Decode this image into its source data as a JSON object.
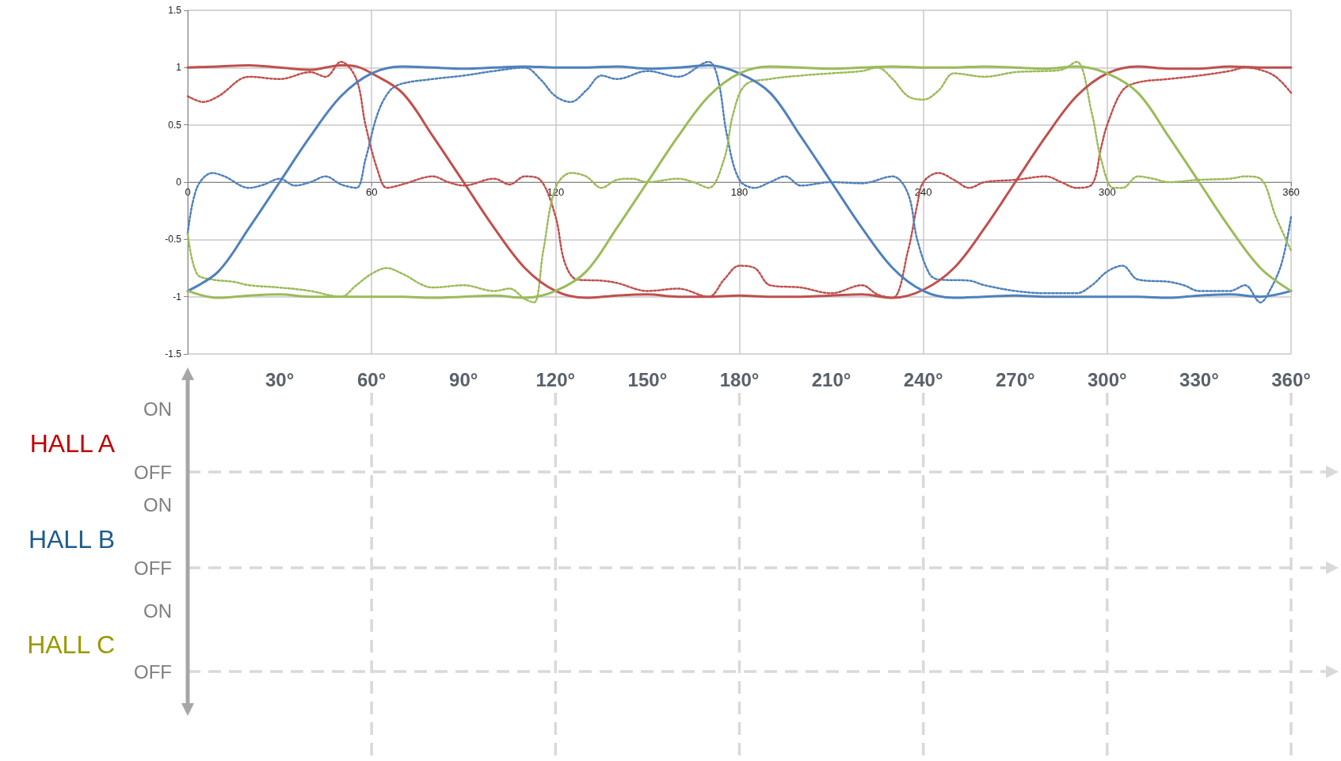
{
  "chart_data": [
    {
      "type": "line",
      "xlim": [
        0,
        360
      ],
      "xticks": [
        0,
        60,
        120,
        180,
        240,
        300,
        360
      ],
      "x2lim": [
        0,
        360
      ],
      "x2ticks": [
        {
          "value": 30,
          "label": "30°"
        },
        {
          "value": 60,
          "label": "60°"
        },
        {
          "value": 90,
          "label": "90°"
        },
        {
          "value": 120,
          "label": "120°"
        },
        {
          "value": 150,
          "label": "150°"
        },
        {
          "value": 180,
          "label": "180°"
        },
        {
          "value": 210,
          "label": "210°"
        },
        {
          "value": 240,
          "label": "240°"
        },
        {
          "value": 270,
          "label": "270°"
        },
        {
          "value": 300,
          "label": "300°"
        },
        {
          "value": 330,
          "label": "330°"
        },
        {
          "value": 360,
          "label": "360°"
        }
      ],
      "ylim": [
        -1.5,
        1.5
      ],
      "yticks": [
        -1.5,
        -1,
        -0.5,
        0,
        0.5,
        1,
        1.5
      ],
      "grid": true,
      "marker": "none",
      "series": [
        {
          "color": "#c0504d",
          "line_style": "solid",
          "x": [
            0,
            10,
            20,
            30,
            40,
            50,
            55,
            60,
            70,
            80,
            90,
            100,
            110,
            120,
            130,
            140,
            150,
            160,
            170,
            180,
            190,
            200,
            210,
            220,
            230,
            240,
            250,
            260,
            270,
            280,
            290,
            300,
            310,
            320,
            330,
            340,
            350,
            360
          ],
          "values": [
            1,
            1.01,
            1.02,
            1,
            0.98,
            1.02,
            1.01,
            0.95,
            0.78,
            0.4,
            0,
            -0.4,
            -0.75,
            -0.95,
            -1.01,
            -0.99,
            -0.98,
            -1,
            -1,
            -0.99,
            -1,
            -1,
            -0.99,
            -0.98,
            -1.01,
            -0.94,
            -0.75,
            -0.4,
            0,
            0.4,
            0.75,
            0.95,
            1.01,
            0.99,
            0.99,
            1.01,
            1,
            1
          ]
        },
        {
          "color": "#4f81bd",
          "line_style": "solid",
          "x": [
            0,
            10,
            20,
            30,
            40,
            50,
            60,
            70,
            80,
            90,
            100,
            110,
            120,
            130,
            140,
            150,
            160,
            170,
            180,
            190,
            200,
            210,
            220,
            230,
            240,
            250,
            260,
            270,
            280,
            290,
            300,
            310,
            320,
            330,
            340,
            350,
            360
          ],
          "values": [
            -0.95,
            -0.78,
            -0.4,
            0,
            0.4,
            0.75,
            0.95,
            1.01,
            1,
            0.99,
            1,
            1.01,
            1,
            1,
            1.01,
            0.99,
            1,
            1.02,
            0.95,
            0.78,
            0.4,
            0,
            -0.4,
            -0.75,
            -0.95,
            -1.01,
            -1,
            -0.99,
            -1,
            -1,
            -1,
            -1,
            -1.01,
            -0.99,
            -0.98,
            -1,
            -0.95
          ]
        },
        {
          "color": "#9bbb59",
          "line_style": "solid",
          "x": [
            0,
            10,
            20,
            30,
            40,
            50,
            60,
            70,
            80,
            90,
            100,
            110,
            120,
            130,
            140,
            150,
            160,
            170,
            180,
            190,
            200,
            210,
            220,
            230,
            240,
            250,
            260,
            270,
            280,
            290,
            300,
            310,
            320,
            330,
            340,
            350,
            360
          ],
          "values": [
            -0.95,
            -1.01,
            -0.99,
            -0.98,
            -1,
            -1,
            -1,
            -1,
            -1.01,
            -1,
            -0.99,
            -1.01,
            -0.95,
            -0.78,
            -0.4,
            0,
            0.4,
            0.75,
            0.95,
            1.01,
            1,
            0.99,
            1,
            1.01,
            1,
            1,
            1.01,
            1,
            0.99,
            1.01,
            0.95,
            0.78,
            0.4,
            0,
            -0.4,
            -0.75,
            -0.95
          ]
        },
        {
          "color": "#c0504d",
          "line_style": "dotted",
          "x": [
            0,
            5,
            10,
            20,
            30,
            40,
            45,
            50,
            55,
            58,
            62,
            65,
            70,
            80,
            85,
            90,
            100,
            105,
            110,
            115,
            120,
            123,
            127,
            135,
            140,
            150,
            160,
            170,
            175,
            180,
            185,
            190,
            200,
            210,
            220,
            225,
            230,
            235,
            238,
            240,
            245,
            250,
            255,
            260,
            270,
            280,
            285,
            290,
            295,
            298,
            300,
            305,
            310,
            320,
            330,
            340,
            345,
            350,
            355,
            360
          ],
          "values": [
            0.75,
            0.7,
            0.75,
            0.92,
            0.9,
            0.96,
            0.92,
            1.05,
            0.9,
            0.5,
            0.1,
            -0.05,
            -0.02,
            0.05,
            0,
            -0.03,
            0.03,
            -0.02,
            0.05,
            0.02,
            -0.3,
            -0.7,
            -0.85,
            -0.86,
            -0.88,
            -0.95,
            -0.93,
            -1,
            -0.85,
            -0.73,
            -0.75,
            -0.9,
            -0.92,
            -0.97,
            -0.9,
            -0.98,
            -1.01,
            -0.6,
            -0.2,
            0,
            0.08,
            0.02,
            -0.05,
            0,
            0.02,
            0.05,
            0,
            -0.05,
            -0.02,
            0.3,
            0.5,
            0.8,
            0.87,
            0.9,
            0.93,
            0.97,
            1,
            0.98,
            0.92,
            0.78
          ]
        },
        {
          "color": "#4f81bd",
          "line_style": "dotted",
          "x": [
            0,
            3,
            8,
            12,
            20,
            25,
            30,
            35,
            40,
            45,
            50,
            55,
            58,
            62,
            66,
            70,
            80,
            90,
            100,
            110,
            115,
            120,
            125,
            130,
            135,
            140,
            150,
            160,
            170,
            173,
            176,
            180,
            185,
            190,
            195,
            200,
            210,
            220,
            230,
            235,
            238,
            242,
            245,
            255,
            260,
            270,
            280,
            290,
            295,
            300,
            305,
            310,
            320,
            325,
            330,
            340,
            345,
            350,
            353,
            357,
            360
          ],
          "values": [
            -0.45,
            -0.05,
            0.08,
            0.05,
            -0.05,
            -0.02,
            0.03,
            -0.03,
            0,
            0.05,
            -0.02,
            -0.05,
            0.2,
            0.6,
            0.8,
            0.86,
            0.9,
            0.93,
            0.97,
            1,
            0.9,
            0.75,
            0.7,
            0.8,
            0.93,
            0.9,
            0.97,
            0.92,
            1.05,
            0.9,
            0.4,
            0.02,
            -0.05,
            0,
            0.05,
            -0.03,
            0,
            -0.01,
            0.05,
            -0.1,
            -0.5,
            -0.8,
            -0.85,
            -0.86,
            -0.9,
            -0.95,
            -0.97,
            -0.97,
            -0.9,
            -0.78,
            -0.73,
            -0.85,
            -0.87,
            -0.9,
            -0.95,
            -0.95,
            -0.9,
            -1.05,
            -0.95,
            -0.7,
            -0.3
          ]
        },
        {
          "color": "#9bbb59",
          "line_style": "dotted",
          "x": [
            0,
            3,
            8,
            15,
            20,
            30,
            40,
            50,
            55,
            60,
            65,
            70,
            80,
            90,
            100,
            105,
            110,
            113,
            116,
            120,
            125,
            130,
            135,
            140,
            145,
            150,
            160,
            165,
            170,
            175,
            178,
            182,
            190,
            200,
            210,
            220,
            225,
            230,
            235,
            240,
            245,
            250,
            260,
            270,
            280,
            285,
            290,
            295,
            298,
            302,
            305,
            310,
            315,
            320,
            330,
            340,
            345,
            350,
            355,
            360
          ],
          "values": [
            -0.45,
            -0.8,
            -0.85,
            -0.87,
            -0.9,
            -0.92,
            -0.95,
            -1,
            -0.9,
            -0.8,
            -0.75,
            -0.8,
            -0.92,
            -0.9,
            -0.95,
            -0.93,
            -1.02,
            -1.05,
            -0.6,
            -0.05,
            0.08,
            0.05,
            -0.05,
            0.02,
            0.03,
            0,
            0.03,
            0,
            -0.05,
            0.2,
            0.6,
            0.85,
            0.9,
            0.93,
            0.95,
            0.97,
            1,
            0.9,
            0.75,
            0.72,
            0.8,
            0.95,
            0.92,
            0.96,
            0.97,
            0.98,
            1.05,
            0.6,
            0.2,
            -0.05,
            -0.05,
            0.05,
            0.03,
            0,
            0.02,
            0.03,
            0.05,
            0.03,
            -0.3,
            -0.6
          ]
        }
      ]
    },
    {
      "type": "other",
      "annotations": [
        "ON",
        "OFF",
        "ON",
        "OFF",
        "ON",
        "OFF"
      ],
      "series": [
        {
          "name": "HALL A",
          "color": "#c00000"
        },
        {
          "name": "HALL B",
          "color": "#1f5c8b"
        },
        {
          "name": "HALL C",
          "color": "#999900"
        }
      ]
    }
  ]
}
